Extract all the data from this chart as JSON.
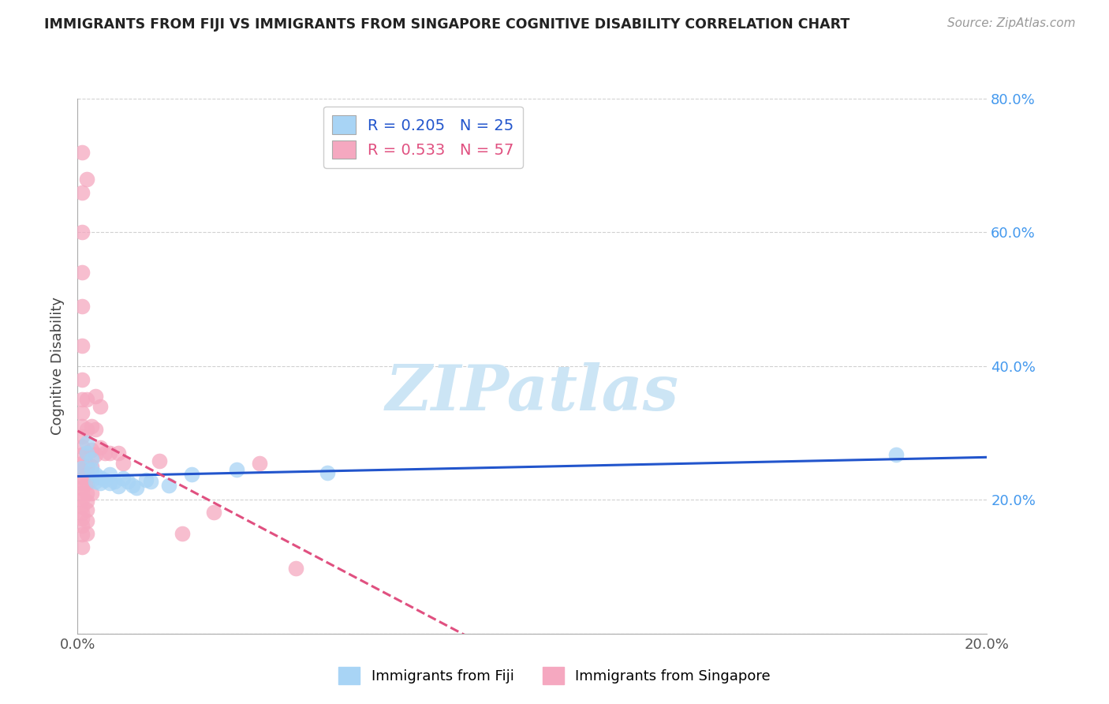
{
  "title": "IMMIGRANTS FROM FIJI VS IMMIGRANTS FROM SINGAPORE COGNITIVE DISABILITY CORRELATION CHART",
  "source": "Source: ZipAtlas.com",
  "ylabel": "Cognitive Disability",
  "xlim": [
    0.0,
    0.2
  ],
  "ylim": [
    0.0,
    0.8
  ],
  "fiji_R": 0.205,
  "fiji_N": 25,
  "singapore_R": 0.533,
  "singapore_N": 57,
  "fiji_color": "#a8d4f5",
  "singapore_color": "#f5a8c0",
  "fiji_line_color": "#2255cc",
  "singapore_line_color": "#e05080",
  "ytick_color": "#4499ee",
  "watermark_color": "#cce5f5",
  "fiji_points": [
    [
      0.001,
      0.248
    ],
    [
      0.002,
      0.285
    ],
    [
      0.002,
      0.27
    ],
    [
      0.003,
      0.26
    ],
    [
      0.003,
      0.245
    ],
    [
      0.004,
      0.238
    ],
    [
      0.004,
      0.228
    ],
    [
      0.005,
      0.233
    ],
    [
      0.005,
      0.225
    ],
    [
      0.006,
      0.23
    ],
    [
      0.007,
      0.225
    ],
    [
      0.007,
      0.238
    ],
    [
      0.008,
      0.228
    ],
    [
      0.009,
      0.22
    ],
    [
      0.01,
      0.232
    ],
    [
      0.011,
      0.228
    ],
    [
      0.012,
      0.222
    ],
    [
      0.013,
      0.218
    ],
    [
      0.015,
      0.23
    ],
    [
      0.016,
      0.228
    ],
    [
      0.02,
      0.222
    ],
    [
      0.025,
      0.238
    ],
    [
      0.035,
      0.245
    ],
    [
      0.055,
      0.24
    ],
    [
      0.18,
      0.268
    ]
  ],
  "singapore_points": [
    [
      0.001,
      0.72
    ],
    [
      0.001,
      0.66
    ],
    [
      0.001,
      0.6
    ],
    [
      0.001,
      0.54
    ],
    [
      0.001,
      0.49
    ],
    [
      0.001,
      0.43
    ],
    [
      0.001,
      0.38
    ],
    [
      0.001,
      0.35
    ],
    [
      0.001,
      0.33
    ],
    [
      0.001,
      0.31
    ],
    [
      0.001,
      0.295
    ],
    [
      0.001,
      0.28
    ],
    [
      0.001,
      0.268
    ],
    [
      0.001,
      0.255
    ],
    [
      0.001,
      0.245
    ],
    [
      0.001,
      0.235
    ],
    [
      0.001,
      0.225
    ],
    [
      0.001,
      0.218
    ],
    [
      0.001,
      0.21
    ],
    [
      0.001,
      0.2
    ],
    [
      0.001,
      0.19
    ],
    [
      0.001,
      0.18
    ],
    [
      0.001,
      0.172
    ],
    [
      0.001,
      0.162
    ],
    [
      0.001,
      0.148
    ],
    [
      0.001,
      0.13
    ],
    [
      0.002,
      0.68
    ],
    [
      0.002,
      0.35
    ],
    [
      0.002,
      0.305
    ],
    [
      0.002,
      0.27
    ],
    [
      0.002,
      0.25
    ],
    [
      0.002,
      0.238
    ],
    [
      0.002,
      0.225
    ],
    [
      0.002,
      0.21
    ],
    [
      0.002,
      0.198
    ],
    [
      0.002,
      0.185
    ],
    [
      0.002,
      0.168
    ],
    [
      0.002,
      0.15
    ],
    [
      0.003,
      0.31
    ],
    [
      0.003,
      0.275
    ],
    [
      0.003,
      0.25
    ],
    [
      0.003,
      0.23
    ],
    [
      0.003,
      0.21
    ],
    [
      0.004,
      0.355
    ],
    [
      0.004,
      0.305
    ],
    [
      0.004,
      0.268
    ],
    [
      0.005,
      0.34
    ],
    [
      0.005,
      0.278
    ],
    [
      0.006,
      0.27
    ],
    [
      0.007,
      0.27
    ],
    [
      0.009,
      0.27
    ],
    [
      0.01,
      0.255
    ],
    [
      0.018,
      0.258
    ],
    [
      0.023,
      0.15
    ],
    [
      0.03,
      0.182
    ],
    [
      0.04,
      0.255
    ],
    [
      0.048,
      0.098
    ]
  ]
}
